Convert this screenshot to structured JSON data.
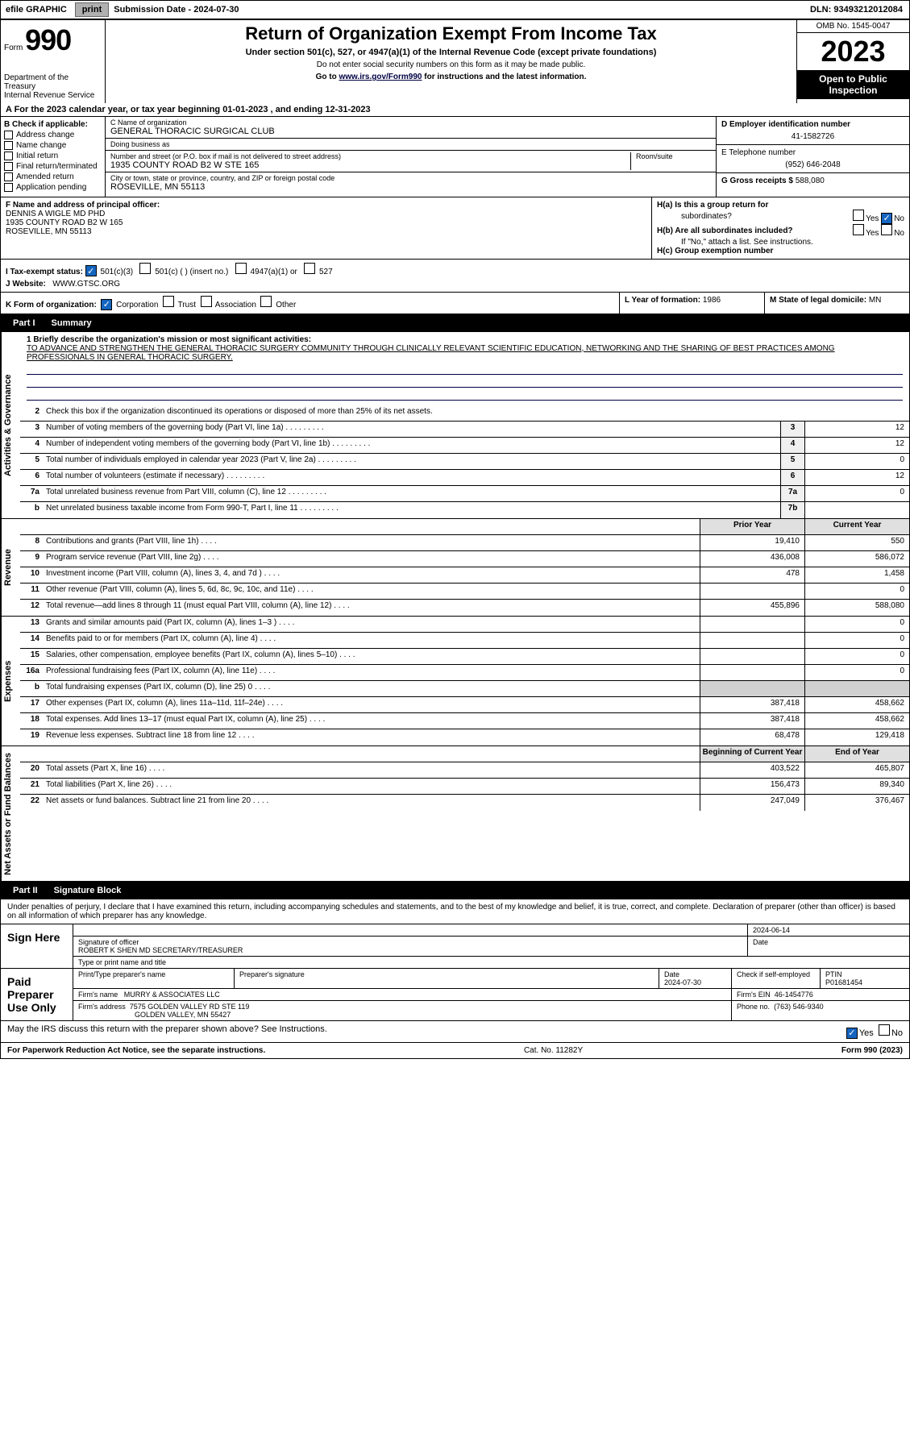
{
  "topbar": {
    "efile_label": "efile GRAPHIC",
    "print_btn": "print",
    "submission_label": "Submission Date - 2024-07-30",
    "dln": "DLN: 93493212012084"
  },
  "header": {
    "form_label": "Form",
    "form_num": "990",
    "dept": "Department of the Treasury",
    "irs": "Internal Revenue Service",
    "title": "Return of Organization Exempt From Income Tax",
    "sub": "Under section 501(c), 527, or 4947(a)(1) of the Internal Revenue Code (except private foundations)",
    "note1": "Do not enter social security numbers on this form as it may be made public.",
    "note2_pre": "Go to ",
    "note2_link": "www.irs.gov/Form990",
    "note2_post": " for instructions and the latest information.",
    "omb": "OMB No. 1545-0047",
    "year": "2023",
    "inspection": "Open to Public Inspection"
  },
  "line_a": "A For the 2023 calendar year, or tax year beginning 01-01-2023   , and ending 12-31-2023",
  "box_b": {
    "label": "B Check if applicable:",
    "items": [
      "Address change",
      "Name change",
      "Initial return",
      "Final return/terminated",
      "Amended return",
      "Application pending"
    ]
  },
  "box_c": {
    "name_label": "C Name of organization",
    "name": "GENERAL THORACIC SURGICAL CLUB",
    "dba_label": "Doing business as",
    "dba": "",
    "addr_label": "Number and street (or P.O. box if mail is not delivered to street address)",
    "addr": "1935 COUNTY ROAD B2 W STE 165",
    "room_label": "Room/suite",
    "city_label": "City or town, state or province, country, and ZIP or foreign postal code",
    "city": "ROSEVILLE, MN  55113"
  },
  "box_d": {
    "ein_label": "D Employer identification number",
    "ein": "41-1582726",
    "phone_label": "E Telephone number",
    "phone": "(952) 646-2048",
    "receipts_label": "G Gross receipts $",
    "receipts": "588,080"
  },
  "box_f": {
    "label": "F  Name and address of principal officer:",
    "name": "DENNIS A WIGLE MD PHD",
    "addr": "1935 COUNTY ROAD B2 W 165",
    "city": "ROSEVILLE, MN  55113"
  },
  "box_h": {
    "ha_label": "H(a)  Is this a group return for",
    "ha_sub": "subordinates?",
    "hb_label": "H(b)  Are all subordinates included?",
    "hb_note": "If \"No,\" attach a list. See instructions.",
    "hc_label": "H(c)  Group exemption number",
    "yes": "Yes",
    "no": "No"
  },
  "line_i": {
    "label": "I    Tax-exempt status:",
    "opt1": "501(c)(3)",
    "opt2": "501(c) (  ) (insert no.)",
    "opt3": "4947(a)(1) or",
    "opt4": "527"
  },
  "line_j": {
    "label": "J   Website:",
    "val": "WWW.GTSC.ORG"
  },
  "line_k": {
    "label": "K Form of organization:",
    "opts": [
      "Corporation",
      "Trust",
      "Association",
      "Other"
    ]
  },
  "line_l": {
    "label": "L Year of formation:",
    "val": "1986"
  },
  "line_m": {
    "label": "M State of legal domicile:",
    "val": "MN"
  },
  "part1": {
    "header": "Part I",
    "title": "Summary",
    "sections": {
      "governance": {
        "label": "Activities & Governance",
        "line1_label": "1   Briefly describe the organization's mission or most significant activities:",
        "line1_text": "TO ADVANCE AND STRENGTHEN THE GENERAL THORACIC SURGERY COMMUNITY THROUGH CLINICALLY RELEVANT SCIENTIFIC EDUCATION, NETWORKING AND THE SHARING OF BEST PRACTICES AMONG PROFESSIONALS IN GENERAL THORACIC SURGERY.",
        "line2": "Check this box      if the organization discontinued its operations or disposed of more than 25% of its net assets.",
        "lines": [
          {
            "n": "3",
            "t": "Number of voting members of the governing body (Part VI, line 1a)",
            "box": "3",
            "v": "12"
          },
          {
            "n": "4",
            "t": "Number of independent voting members of the governing body (Part VI, line 1b)",
            "box": "4",
            "v": "12"
          },
          {
            "n": "5",
            "t": "Total number of individuals employed in calendar year 2023 (Part V, line 2a)",
            "box": "5",
            "v": "0"
          },
          {
            "n": "6",
            "t": "Total number of volunteers (estimate if necessary)",
            "box": "6",
            "v": "12"
          },
          {
            "n": "7a",
            "t": "Total unrelated business revenue from Part VIII, column (C), line 12",
            "box": "7a",
            "v": "0"
          },
          {
            "n": "b",
            "t": "Net unrelated business taxable income from Form 990-T, Part I, line 11",
            "box": "7b",
            "v": ""
          }
        ]
      },
      "revenue": {
        "label": "Revenue",
        "col1": "Prior Year",
        "col2": "Current Year",
        "lines": [
          {
            "n": "8",
            "t": "Contributions and grants (Part VIII, line 1h)",
            "v1": "19,410",
            "v2": "550"
          },
          {
            "n": "9",
            "t": "Program service revenue (Part VIII, line 2g)",
            "v1": "436,008",
            "v2": "586,072"
          },
          {
            "n": "10",
            "t": "Investment income (Part VIII, column (A), lines 3, 4, and 7d )",
            "v1": "478",
            "v2": "1,458"
          },
          {
            "n": "11",
            "t": "Other revenue (Part VIII, column (A), lines 5, 6d, 8c, 9c, 10c, and 11e)",
            "v1": "",
            "v2": "0"
          },
          {
            "n": "12",
            "t": "Total revenue—add lines 8 through 11 (must equal Part VIII, column (A), line 12)",
            "v1": "455,896",
            "v2": "588,080"
          }
        ]
      },
      "expenses": {
        "label": "Expenses",
        "lines": [
          {
            "n": "13",
            "t": "Grants and similar amounts paid (Part IX, column (A), lines 1–3 )",
            "v1": "",
            "v2": "0"
          },
          {
            "n": "14",
            "t": "Benefits paid to or for members (Part IX, column (A), line 4)",
            "v1": "",
            "v2": "0"
          },
          {
            "n": "15",
            "t": "Salaries, other compensation, employee benefits (Part IX, column (A), lines 5–10)",
            "v1": "",
            "v2": "0"
          },
          {
            "n": "16a",
            "t": "Professional fundraising fees (Part IX, column (A), line 11e)",
            "v1": "",
            "v2": "0"
          },
          {
            "n": "b",
            "t": "Total fundraising expenses (Part IX, column (D), line 25) 0",
            "v1": "shade",
            "v2": "shade"
          },
          {
            "n": "17",
            "t": "Other expenses (Part IX, column (A), lines 11a–11d, 11f–24e)",
            "v1": "387,418",
            "v2": "458,662"
          },
          {
            "n": "18",
            "t": "Total expenses. Add lines 13–17 (must equal Part IX, column (A), line 25)",
            "v1": "387,418",
            "v2": "458,662"
          },
          {
            "n": "19",
            "t": "Revenue less expenses. Subtract line 18 from line 12",
            "v1": "68,478",
            "v2": "129,418"
          }
        ]
      },
      "netassets": {
        "label": "Net Assets or Fund Balances",
        "col1": "Beginning of Current Year",
        "col2": "End of Year",
        "lines": [
          {
            "n": "20",
            "t": "Total assets (Part X, line 16)",
            "v1": "403,522",
            "v2": "465,807"
          },
          {
            "n": "21",
            "t": "Total liabilities (Part X, line 26)",
            "v1": "156,473",
            "v2": "89,340"
          },
          {
            "n": "22",
            "t": "Net assets or fund balances. Subtract line 21 from line 20",
            "v1": "247,049",
            "v2": "376,467"
          }
        ]
      }
    }
  },
  "part2": {
    "header": "Part II",
    "title": "Signature Block",
    "declare": "Under penalties of perjury, I declare that I have examined this return, including accompanying schedules and statements, and to the best of my knowledge and belief, it is true, correct, and complete. Declaration of preparer (other than officer) is based on all information of which preparer has any knowledge.",
    "sign_here": "Sign Here",
    "sig_date": "2024-06-14",
    "sig_label": "Signature of officer",
    "officer": "ROBERT K SHEN MD  SECRETARY/TREASURER",
    "type_label": "Type or print name and title",
    "date_label": "Date",
    "paid": "Paid Preparer Use Only",
    "prep_name_label": "Print/Type preparer's name",
    "prep_sig_label": "Preparer's signature",
    "prep_date_label": "Date",
    "prep_date": "2024-07-30",
    "check_label": "Check        if self-employed",
    "ptin_label": "PTIN",
    "ptin": "P01681454",
    "firm_name_label": "Firm's name",
    "firm_name": "MURRY & ASSOCIATES LLC",
    "firm_ein_label": "Firm's EIN",
    "firm_ein": "46-1454776",
    "firm_addr_label": "Firm's address",
    "firm_addr": "7575 GOLDEN VALLEY RD STE 119",
    "firm_city": "GOLDEN VALLEY, MN  55427",
    "phone_label": "Phone no.",
    "phone": "(763) 546-9340",
    "discuss": "May the IRS discuss this return with the preparer shown above? See Instructions.",
    "yes": "Yes",
    "no": "No"
  },
  "footer": {
    "left": "For Paperwork Reduction Act Notice, see the separate instructions.",
    "mid": "Cat. No. 11282Y",
    "right": "Form 990 (2023)"
  }
}
